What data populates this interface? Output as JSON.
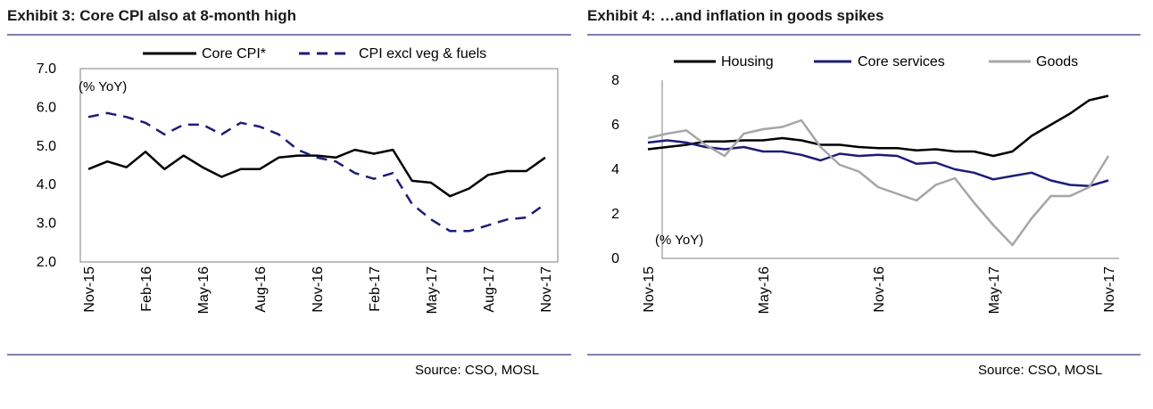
{
  "exhibits": [
    {
      "title": "Exhibit 3: Core CPI also at 8-month high",
      "source": "Source: CSO, MOSL"
    },
    {
      "title": "Exhibit 4: …and inflation in goods spikes",
      "source": "Source: CSO, MOSL"
    }
  ],
  "chart_data": [
    {
      "type": "line",
      "unit_label": "(% YoY)",
      "ylim": [
        2.0,
        7.0
      ],
      "yticks": [
        "2.0",
        "3.0",
        "4.0",
        "5.0",
        "6.0",
        "7.0"
      ],
      "x": [
        "Nov-15",
        "Dec-15",
        "Jan-16",
        "Feb-16",
        "Mar-16",
        "Apr-16",
        "May-16",
        "Jun-16",
        "Jul-16",
        "Aug-16",
        "Sep-16",
        "Oct-16",
        "Nov-16",
        "Dec-16",
        "Jan-17",
        "Feb-17",
        "Mar-17",
        "Apr-17",
        "May-17",
        "Jun-17",
        "Jul-17",
        "Aug-17",
        "Sep-17",
        "Oct-17",
        "Nov-17"
      ],
      "xtick_labels": [
        "Nov-15",
        "Feb-16",
        "May-16",
        "Aug-16",
        "Nov-16",
        "Feb-17",
        "May-17",
        "Aug-17",
        "Nov-17"
      ],
      "legend_position": "top",
      "grid": false,
      "series": [
        {
          "name": "Core CPI*",
          "color": "#000000",
          "dash": "solid",
          "values": [
            4.4,
            4.6,
            4.45,
            4.85,
            4.4,
            4.75,
            4.45,
            4.2,
            4.4,
            4.4,
            4.7,
            4.75,
            4.75,
            4.7,
            4.9,
            4.8,
            4.9,
            4.1,
            4.05,
            3.7,
            3.9,
            4.25,
            4.35,
            4.35,
            4.7
          ]
        },
        {
          "name": "CPI excl veg & fuels",
          "color": "#1c1c78",
          "dash": "dashed",
          "values": [
            5.75,
            5.85,
            5.75,
            5.6,
            5.3,
            5.55,
            5.55,
            5.3,
            5.6,
            5.5,
            5.3,
            4.9,
            4.7,
            4.6,
            4.3,
            4.15,
            4.3,
            3.5,
            3.1,
            2.8,
            2.8,
            2.95,
            3.1,
            3.15,
            3.5
          ]
        }
      ]
    },
    {
      "type": "line",
      "unit_label": "(% YoY)",
      "ylim": [
        0,
        8
      ],
      "yticks": [
        "0",
        "2",
        "4",
        "6",
        "8"
      ],
      "x": [
        "Nov-15",
        "Dec-15",
        "Jan-16",
        "Feb-16",
        "Mar-16",
        "Apr-16",
        "May-16",
        "Jun-16",
        "Jul-16",
        "Aug-16",
        "Sep-16",
        "Oct-16",
        "Nov-16",
        "Dec-16",
        "Jan-17",
        "Feb-17",
        "Mar-17",
        "Apr-17",
        "May-17",
        "Jun-17",
        "Jul-17",
        "Aug-17",
        "Sep-17",
        "Oct-17",
        "Nov-17"
      ],
      "xtick_labels": [
        "Nov-15",
        "May-16",
        "Nov-16",
        "May-17",
        "Nov-17"
      ],
      "legend_position": "top",
      "grid": false,
      "series": [
        {
          "name": "Housing",
          "color": "#000000",
          "dash": "solid",
          "values": [
            4.9,
            5.0,
            5.1,
            5.25,
            5.25,
            5.3,
            5.3,
            5.4,
            5.3,
            5.1,
            5.1,
            5.0,
            4.95,
            4.95,
            4.85,
            4.9,
            4.8,
            4.8,
            4.6,
            4.8,
            5.5,
            6.0,
            6.5,
            7.1,
            7.3
          ]
        },
        {
          "name": "Core services",
          "color": "#1c1c78",
          "dash": "solid",
          "values": [
            5.2,
            5.3,
            5.2,
            5.0,
            4.9,
            5.0,
            4.8,
            4.8,
            4.65,
            4.4,
            4.7,
            4.6,
            4.65,
            4.6,
            4.25,
            4.3,
            4.0,
            3.85,
            3.55,
            3.7,
            3.85,
            3.5,
            3.3,
            3.25,
            3.5
          ]
        },
        {
          "name": "Goods",
          "color": "#a6a6a6",
          "dash": "solid",
          "values": [
            5.4,
            5.6,
            5.75,
            5.1,
            4.6,
            5.6,
            5.8,
            5.9,
            6.2,
            5.0,
            4.2,
            3.9,
            3.2,
            2.9,
            2.6,
            3.3,
            3.6,
            2.5,
            1.5,
            0.6,
            1.8,
            2.8,
            2.8,
            3.2,
            4.6
          ]
        }
      ]
    }
  ]
}
